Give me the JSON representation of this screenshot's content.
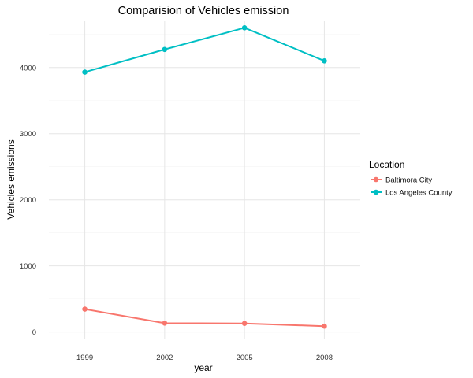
{
  "chart_data": {
    "type": "line",
    "title": "Comparision of Vehicles emission",
    "xlabel": "year",
    "ylabel": "Vehicles emissions",
    "x": [
      1999,
      2002,
      2005,
      2008
    ],
    "x_tick_labels": [
      "1999",
      "2002",
      "2005",
      "2008"
    ],
    "y_ticks": [
      0,
      1000,
      2000,
      3000,
      4000
    ],
    "y_tick_labels": [
      "0",
      "1000",
      "2000",
      "3000",
      "4000"
    ],
    "ylim": [
      -100,
      4700
    ],
    "xlim": [
      1997.65,
      2009.35
    ],
    "grid": true,
    "legend": {
      "title": "Location",
      "placement": "right"
    },
    "series": [
      {
        "name": "Baltimora City",
        "color": "#F8766D",
        "values": [
          346,
          134,
          130,
          88
        ]
      },
      {
        "name": "Los Angeles County",
        "color": "#00BFC4",
        "values": [
          3931,
          4274,
          4601,
          4101
        ]
      }
    ]
  }
}
